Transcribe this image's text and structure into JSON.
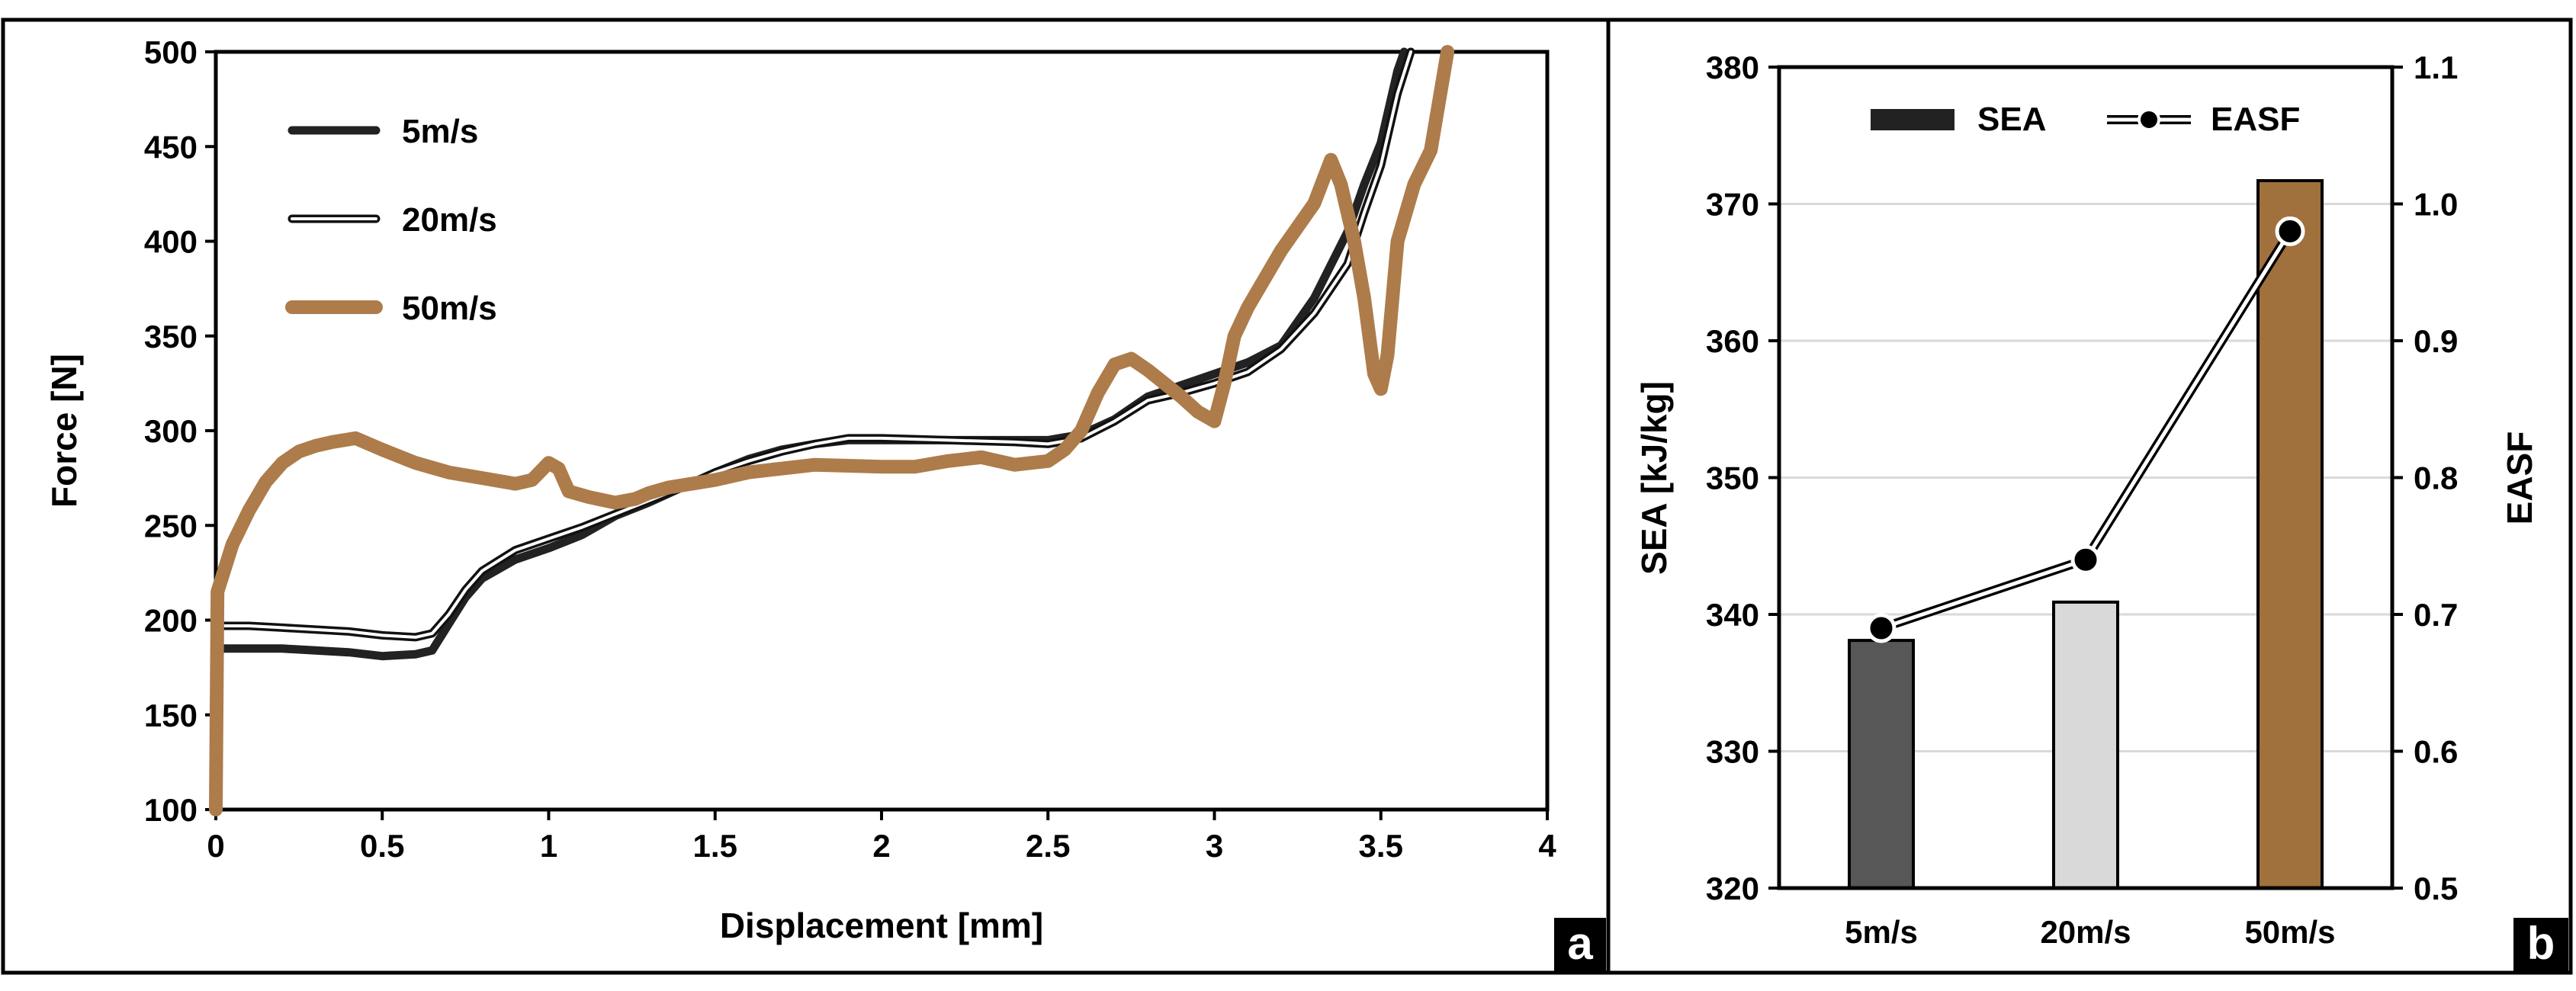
{
  "chart_data": [
    {
      "panel": "a",
      "type": "line",
      "xlabel": "Displacement [mm]",
      "ylabel": "Force [N]",
      "xlim": [
        0,
        4
      ],
      "ylim": [
        100,
        500
      ],
      "xticks": [
        "0",
        "0.5",
        "1",
        "1.5",
        "2",
        "2.5",
        "3",
        "3.5",
        "4"
      ],
      "yticks": [
        "100",
        "150",
        "200",
        "250",
        "300",
        "350",
        "400",
        "450",
        "500"
      ],
      "grid": false,
      "legend_position": "top-left",
      "series": [
        {
          "name": "5m/s",
          "style": "solid-black",
          "points": [
            [
              0,
              100
            ],
            [
              0.005,
              185
            ],
            [
              0.1,
              185
            ],
            [
              0.2,
              185
            ],
            [
              0.3,
              184
            ],
            [
              0.4,
              183
            ],
            [
              0.5,
              181
            ],
            [
              0.6,
              182
            ],
            [
              0.65,
              184
            ],
            [
              0.7,
              198
            ],
            [
              0.75,
              212
            ],
            [
              0.8,
              222
            ],
            [
              0.9,
              232
            ],
            [
              1.0,
              238
            ],
            [
              1.1,
              245
            ],
            [
              1.2,
              255
            ],
            [
              1.3,
              262
            ],
            [
              1.4,
              270
            ],
            [
              1.5,
              278
            ],
            [
              1.6,
              285
            ],
            [
              1.7,
              290
            ],
            [
              1.8,
              293
            ],
            [
              1.9,
              295
            ],
            [
              2.0,
              295
            ],
            [
              2.2,
              295
            ],
            [
              2.4,
              295
            ],
            [
              2.5,
              295
            ],
            [
              2.6,
              298
            ],
            [
              2.7,
              306
            ],
            [
              2.8,
              318
            ],
            [
              2.9,
              324
            ],
            [
              3.0,
              330
            ],
            [
              3.1,
              336
            ],
            [
              3.2,
              345
            ],
            [
              3.3,
              370
            ],
            [
              3.4,
              405
            ],
            [
              3.45,
              430
            ],
            [
              3.5,
              452
            ],
            [
              3.55,
              490
            ],
            [
              3.57,
              500
            ]
          ]
        },
        {
          "name": "20m/s",
          "style": "double-line",
          "points": [
            [
              0,
              100
            ],
            [
              0.005,
              197
            ],
            [
              0.1,
              197
            ],
            [
              0.2,
              196
            ],
            [
              0.3,
              195
            ],
            [
              0.4,
              194
            ],
            [
              0.5,
              192
            ],
            [
              0.6,
              191
            ],
            [
              0.65,
              193
            ],
            [
              0.7,
              203
            ],
            [
              0.75,
              216
            ],
            [
              0.8,
              226
            ],
            [
              0.9,
              237
            ],
            [
              1.0,
              243
            ],
            [
              1.1,
              249
            ],
            [
              1.2,
              256
            ],
            [
              1.3,
              263
            ],
            [
              1.4,
              270
            ],
            [
              1.5,
              278
            ],
            [
              1.6,
              284
            ],
            [
              1.7,
              289
            ],
            [
              1.8,
              293
            ],
            [
              1.9,
              296
            ],
            [
              2.0,
              296
            ],
            [
              2.2,
              295
            ],
            [
              2.4,
              294
            ],
            [
              2.5,
              293
            ],
            [
              2.6,
              296
            ],
            [
              2.7,
              305
            ],
            [
              2.8,
              316
            ],
            [
              2.9,
              320
            ],
            [
              3.0,
              325
            ],
            [
              3.1,
              331
            ],
            [
              3.2,
              343
            ],
            [
              3.3,
              362
            ],
            [
              3.4,
              388
            ],
            [
              3.45,
              415
            ],
            [
              3.5,
              440
            ],
            [
              3.55,
              478
            ],
            [
              3.59,
              500
            ]
          ]
        },
        {
          "name": "50m/s",
          "style": "solid-brown",
          "points": [
            [
              0,
              100
            ],
            [
              0.005,
              215
            ],
            [
              0.05,
              240
            ],
            [
              0.1,
              258
            ],
            [
              0.15,
              273
            ],
            [
              0.2,
              283
            ],
            [
              0.25,
              289
            ],
            [
              0.3,
              292
            ],
            [
              0.35,
              294
            ],
            [
              0.42,
              296
            ],
            [
              0.5,
              290
            ],
            [
              0.6,
              283
            ],
            [
              0.7,
              278
            ],
            [
              0.8,
              275
            ],
            [
              0.9,
              272
            ],
            [
              0.95,
              274
            ],
            [
              1.0,
              283
            ],
            [
              1.03,
              280
            ],
            [
              1.06,
              268
            ],
            [
              1.12,
              265
            ],
            [
              1.2,
              262
            ],
            [
              1.26,
              264
            ],
            [
              1.3,
              267
            ],
            [
              1.36,
              270
            ],
            [
              1.5,
              274
            ],
            [
              1.6,
              278
            ],
            [
              1.7,
              280
            ],
            [
              1.8,
              282
            ],
            [
              2.0,
              281
            ],
            [
              2.1,
              281
            ],
            [
              2.2,
              284
            ],
            [
              2.3,
              286
            ],
            [
              2.35,
              284
            ],
            [
              2.4,
              282
            ],
            [
              2.5,
              284
            ],
            [
              2.55,
              290
            ],
            [
              2.6,
              300
            ],
            [
              2.65,
              320
            ],
            [
              2.7,
              335
            ],
            [
              2.75,
              338
            ],
            [
              2.8,
              332
            ],
            [
              2.85,
              325
            ],
            [
              2.9,
              318
            ],
            [
              2.95,
              310
            ],
            [
              3.0,
              305
            ],
            [
              3.03,
              325
            ],
            [
              3.06,
              350
            ],
            [
              3.1,
              365
            ],
            [
              3.2,
              395
            ],
            [
              3.3,
              420
            ],
            [
              3.35,
              443
            ],
            [
              3.38,
              430
            ],
            [
              3.42,
              400
            ],
            [
              3.45,
              370
            ],
            [
              3.48,
              330
            ],
            [
              3.5,
              322
            ],
            [
              3.52,
              340
            ],
            [
              3.55,
              400
            ],
            [
              3.6,
              430
            ],
            [
              3.65,
              448
            ],
            [
              3.7,
              500
            ]
          ]
        }
      ]
    },
    {
      "panel": "b",
      "type": "bar",
      "categories": [
        "5m/s",
        "20m/s",
        "50m/s"
      ],
      "ylabel": "SEA [kJ/kg]",
      "y2label": "EASF",
      "ylim": [
        320,
        380
      ],
      "y2lim": [
        0.5,
        1.1
      ],
      "yticks": [
        "320",
        "330",
        "340",
        "350",
        "360",
        "370",
        "380"
      ],
      "y2ticks": [
        "0.5",
        "0.6",
        "0.7",
        "0.8",
        "0.9",
        "1.0",
        "1.1"
      ],
      "grid": true,
      "legend_position": "top",
      "series": [
        {
          "name": "SEA",
          "type": "bar",
          "axis": "left",
          "values": [
            338.1,
            340.9,
            371.7
          ],
          "colors": [
            "#575757",
            "#d9d9d9",
            "#a0703d"
          ]
        },
        {
          "name": "EASF",
          "type": "line",
          "axis": "right",
          "values": [
            0.69,
            0.74,
            0.98
          ]
        }
      ]
    }
  ],
  "colors": {
    "5m/s": "#222222",
    "20m/s": "#111111",
    "50m/s": "#ad7c4a",
    "grid": "#d9d9d9"
  },
  "panel_labels": [
    "a",
    "b"
  ]
}
